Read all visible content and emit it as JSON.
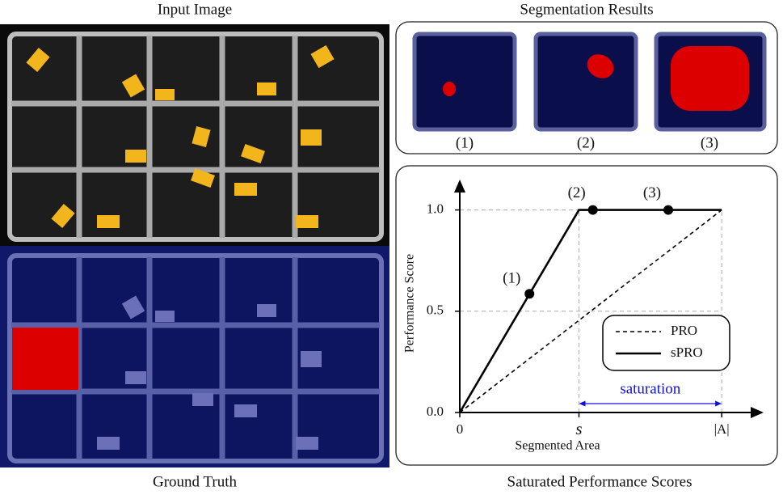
{
  "left": {
    "top_title": "Input Image",
    "bottom_title": "Ground Truth"
  },
  "segmentation": {
    "title": "Segmentation Results",
    "labels": [
      "(1)",
      "(2)",
      "(3)"
    ]
  },
  "chart_caption": "Saturated Performance Scores",
  "chart_data": {
    "type": "line",
    "x_label": "Segmented Area",
    "y_label": "Performance Score",
    "xlim": [
      0,
      1.16
    ],
    "ylim": [
      0,
      1.15
    ],
    "xticks": [
      0,
      {
        "value": 0.455,
        "label": "s"
      },
      {
        "value": 1,
        "label": "|A|"
      }
    ],
    "yticks": [
      {
        "value": 0,
        "label": "0.0"
      },
      {
        "value": 0.5,
        "label": "0.5"
      },
      {
        "value": 1,
        "label": "1.0"
      }
    ],
    "grid": true,
    "series": [
      {
        "name": "PRO",
        "color": "#000000",
        "dash": true,
        "x": [
          0,
          1
        ],
        "values": [
          0,
          1
        ]
      },
      {
        "name": "sPRO",
        "color": "#000000",
        "dash": false,
        "x": [
          0,
          0.455,
          1
        ],
        "values": [
          0,
          1,
          1
        ]
      }
    ],
    "points": {
      "x": [
        0.266,
        0.508,
        0.796
      ],
      "values": [
        0.586,
        1,
        1
      ],
      "labels": [
        "(1)",
        "(2)",
        "(3)"
      ]
    },
    "annotation": {
      "text": "saturation",
      "from": 0.455,
      "to": 1,
      "color": "#1010dd"
    }
  }
}
